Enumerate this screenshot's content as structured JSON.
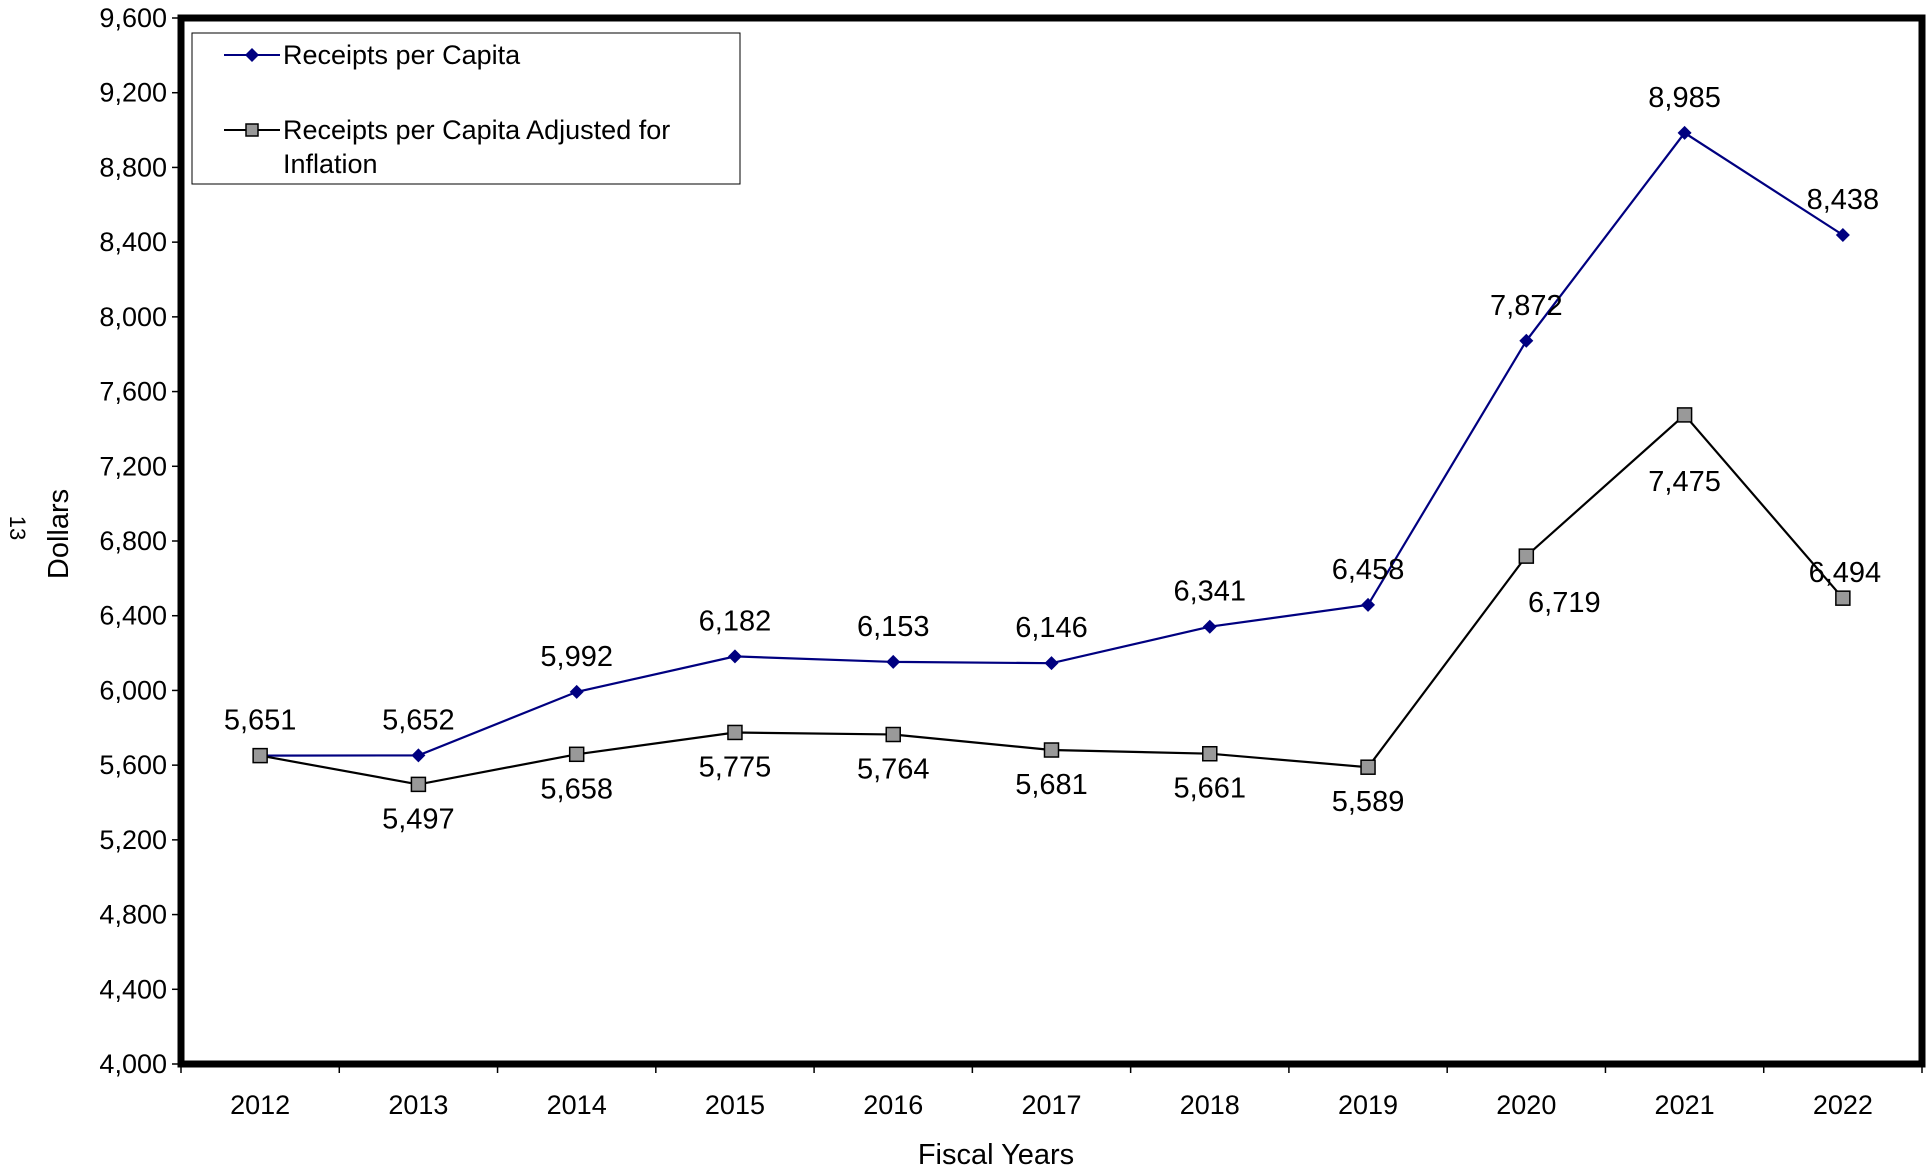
{
  "page_number": "13",
  "chart_data": {
    "type": "line",
    "title": "",
    "xlabel": "Fiscal Years",
    "ylabel": "Dollars",
    "ylim": [
      4000,
      9600
    ],
    "y_ticks": [
      4000,
      4400,
      4800,
      5200,
      5600,
      6000,
      6400,
      6800,
      7200,
      7600,
      8000,
      8400,
      8800,
      9200,
      9600
    ],
    "y_tick_labels": [
      "4,000",
      "4,400",
      "4,800",
      "5,200",
      "5,600",
      "6,000",
      "6,400",
      "6,800",
      "7,200",
      "7,600",
      "8,000",
      "8,400",
      "8,800",
      "9,200",
      "9,600"
    ],
    "categories": [
      "2012",
      "2013",
      "2014",
      "2015",
      "2016",
      "2017",
      "2018",
      "2019",
      "2020",
      "2021",
      "2022"
    ],
    "grid": false,
    "legend_position": "top-left",
    "series": [
      {
        "name": "Receipts per Capita",
        "legend_lines": [
          "Receipts per Capita"
        ],
        "color": "#000080",
        "marker": "diamond",
        "values": [
          5651,
          5652,
          5992,
          6182,
          6153,
          6146,
          6341,
          6458,
          7872,
          8985,
          8438
        ],
        "labels": [
          "5,651",
          "5,652",
          "5,992",
          "6,182",
          "6,153",
          "6,146",
          "6,341",
          "6,458",
          "7,872",
          "8,985",
          "8,438"
        ]
      },
      {
        "name": "Receipts per Capita Adjusted for Inflation",
        "legend_lines": [
          "Receipts per Capita Adjusted for",
          "Inflation"
        ],
        "color": "#000000",
        "marker_fill": "#999999",
        "marker": "square",
        "values": [
          5651,
          5497,
          5658,
          5775,
          5764,
          5681,
          5661,
          5589,
          6719,
          7475,
          6494
        ],
        "labels": [
          "",
          "5,497",
          "5,658",
          "5,775",
          "5,764",
          "5,681",
          "5,661",
          "5,589",
          "6,719",
          "7,475",
          "6,494"
        ]
      }
    ]
  }
}
